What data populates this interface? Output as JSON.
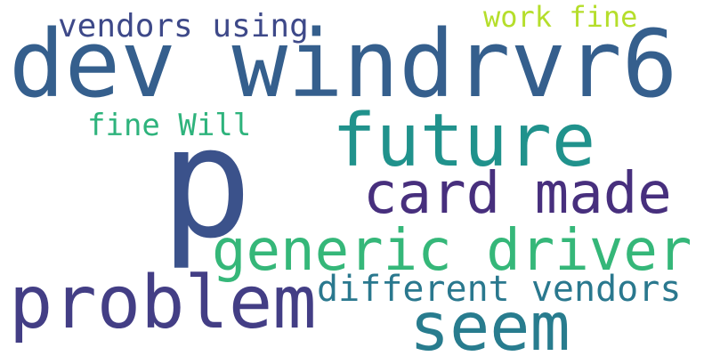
{
  "words": [
    {
      "text": "p",
      "color": "#3b528b"
    },
    {
      "text": "dev windrvr6",
      "color": "#355f8d"
    },
    {
      "text": "future",
      "color": "#20928c"
    },
    {
      "text": "problem",
      "color": "#433e85"
    },
    {
      "text": "card made",
      "color": "#472f7d"
    },
    {
      "text": "generic driver",
      "color": "#35b779"
    },
    {
      "text": "seem",
      "color": "#287c8e"
    },
    {
      "text": "different vendors",
      "color": "#2a788e"
    },
    {
      "text": "vendors using",
      "color": "#3e4989"
    },
    {
      "text": "fine Will",
      "color": "#2eb37c"
    },
    {
      "text": "work fine",
      "color": "#b5de2b"
    }
  ]
}
